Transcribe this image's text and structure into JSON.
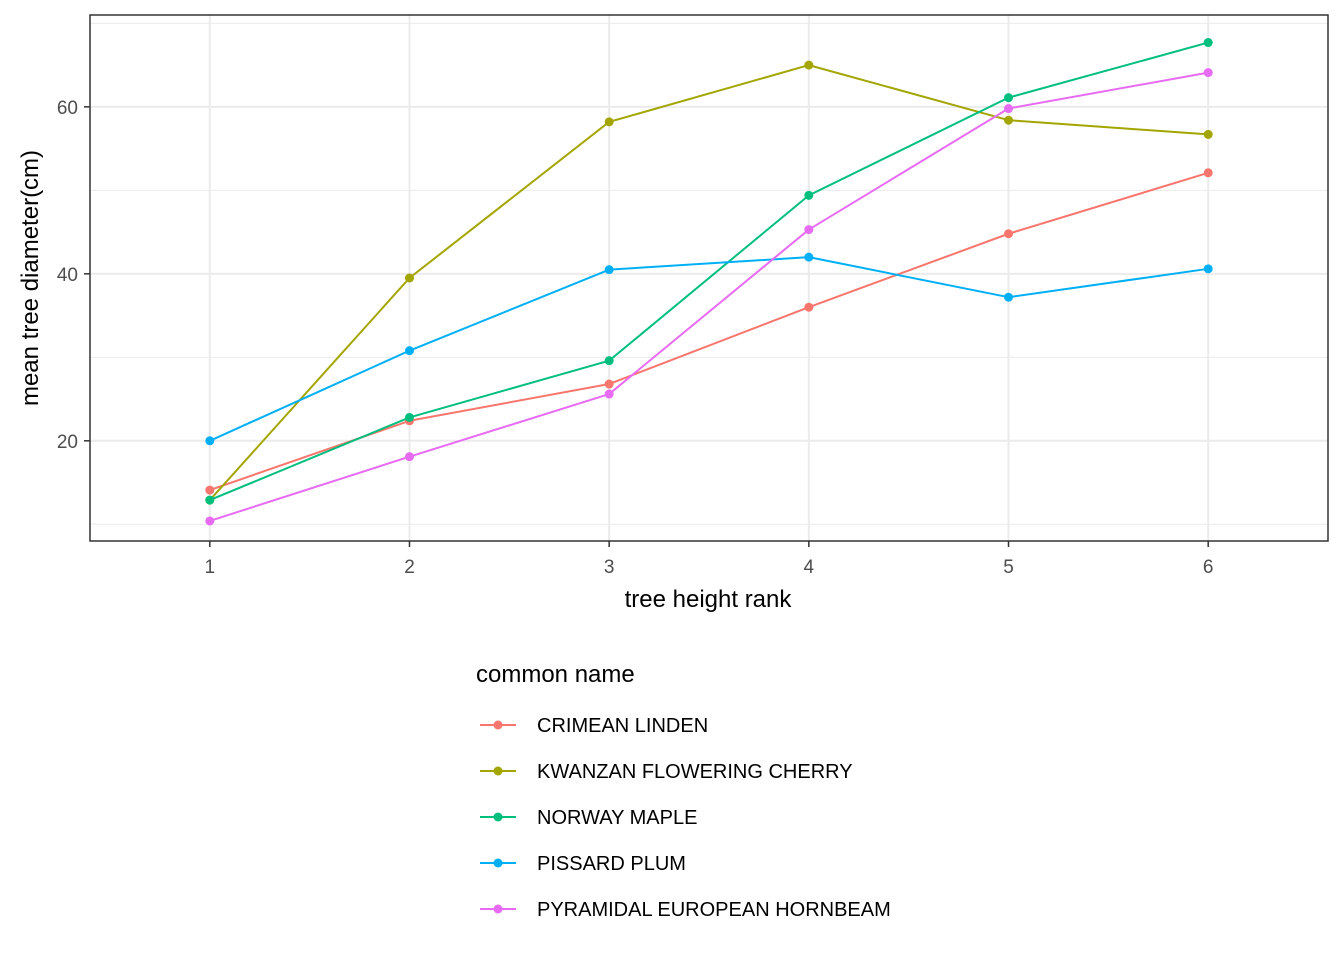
{
  "chart_data": {
    "type": "line",
    "xlabel": "tree height rank",
    "ylabel": "mean tree diameter(cm)",
    "x": [
      1,
      2,
      3,
      4,
      5,
      6
    ],
    "x_ticks": [
      1,
      2,
      3,
      4,
      5,
      6
    ],
    "y_ticks": [
      20,
      40,
      60
    ],
    "xlim": [
      0.4,
      6.6
    ],
    "ylim": [
      8,
      71
    ],
    "grid": true,
    "legend_title": "common name",
    "legend_position": "bottom",
    "series": [
      {
        "name": "CRIMEAN LINDEN",
        "color": "#F8766D",
        "values": [
          14.1,
          22.4,
          26.8,
          36.0,
          44.8,
          52.1
        ]
      },
      {
        "name": "KWANZAN FLOWERING CHERRY",
        "color": "#A3A500",
        "values": [
          12.9,
          39.5,
          58.2,
          65.0,
          58.4,
          56.7
        ]
      },
      {
        "name": "NORWAY MAPLE",
        "color": "#00BF7D",
        "values": [
          12.9,
          22.8,
          29.6,
          49.4,
          61.1,
          67.7
        ]
      },
      {
        "name": "PISSARD PLUM",
        "color": "#00B0F6",
        "values": [
          20.0,
          30.8,
          40.5,
          42.0,
          37.2,
          40.6
        ]
      },
      {
        "name": "PYRAMIDAL EUROPEAN HORNBEAM",
        "color": "#E76BF3",
        "values": [
          10.4,
          18.1,
          25.6,
          45.3,
          59.8,
          64.1
        ]
      }
    ]
  }
}
